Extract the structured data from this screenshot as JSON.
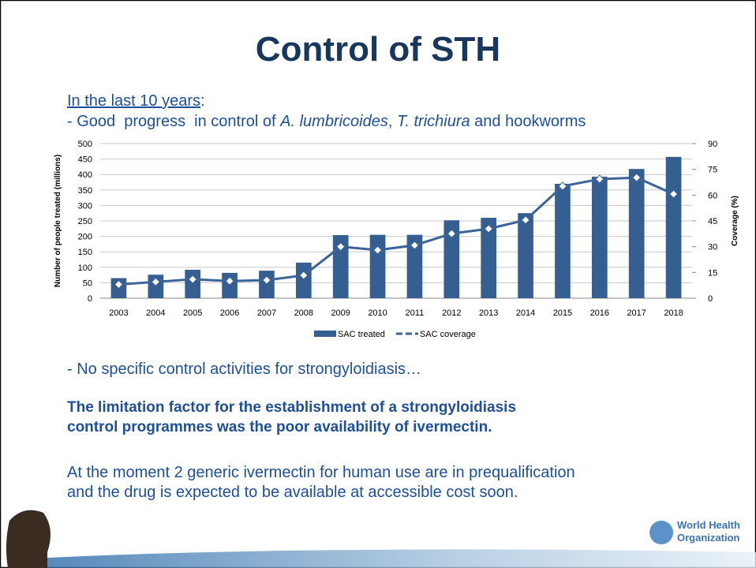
{
  "title": "Control of STH",
  "intro": {
    "underlined": "In the last 10 years",
    "colon": ":"
  },
  "progress": [
    "- Good  progress  in control of ",
    "A. lumbricoides",
    ", ",
    "T. trichiura",
    " and hookworms"
  ],
  "no_control": "- No specific control activities for strongyloidiasis…",
  "limitation": [
    "The limitation factor for the establishment of a strongyloidiasis",
    "control programmes was the poor availability of ivermectin."
  ],
  "moment": [
    "At the moment 2 generic ivermectin for human use are in prequalification",
    "and the drug is expected to be available at accessible cost soon."
  ],
  "logo": [
    "World Health",
    "Organization"
  ],
  "chart_data": {
    "type": "bar",
    "categories": [
      "2003",
      "2004",
      "2005",
      "2006",
      "2007",
      "2008",
      "2009",
      "2010",
      "2011",
      "2012",
      "2013",
      "2014",
      "2015",
      "2016",
      "2017",
      "2018"
    ],
    "series": [
      {
        "name": "SAC treated",
        "type": "bar",
        "color": "#355f91",
        "values": [
          65,
          76,
          92,
          82,
          89,
          115,
          204,
          205,
          205,
          252,
          260,
          275,
          370,
          393,
          418,
          457
        ]
      },
      {
        "name": "SAC coverage",
        "type": "line",
        "axis": "y2",
        "color": "#3a6399",
        "values": [
          8,
          9.5,
          11,
          10,
          10.5,
          13.3,
          30,
          28,
          30.8,
          37.6,
          40.4,
          45.5,
          65.2,
          69.3,
          70.2,
          60.6
        ]
      }
    ],
    "ylabel": "Number of people treated (millions)",
    "y2label": "Coverage (%)",
    "ylim": [
      0,
      500
    ],
    "yticks": [
      0,
      50,
      100,
      150,
      200,
      250,
      300,
      350,
      400,
      450,
      500
    ],
    "y2lim": [
      0,
      90
    ],
    "y2ticks": [
      0,
      15,
      30,
      45,
      60,
      75,
      90
    ],
    "grid": true,
    "legend": "bottom"
  }
}
